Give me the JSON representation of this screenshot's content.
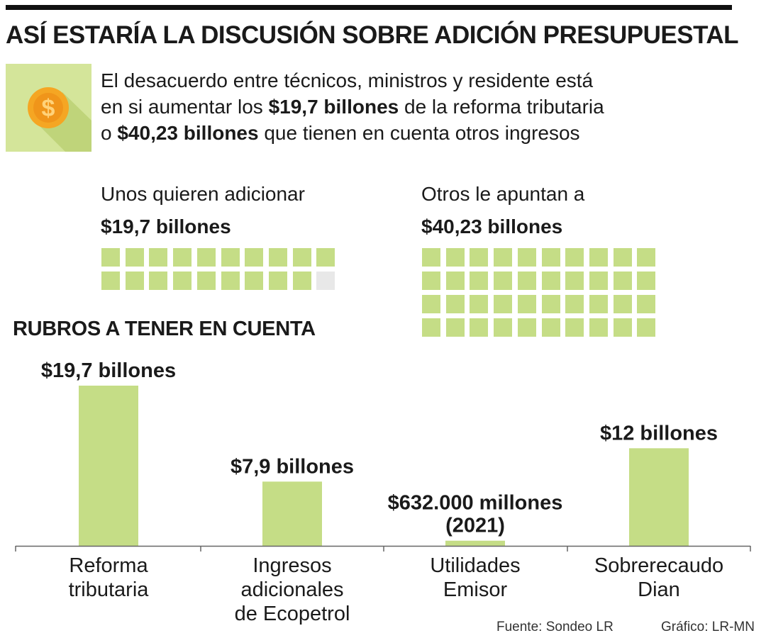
{
  "title": "ASÍ ESTARÍA LA DISCUSIÓN SOBRE ADICIÓN PRESUPUESTAL",
  "intro": {
    "line1": "El desacuerdo entre técnicos, ministros y residente está",
    "line2_pre": "en si aumentar los ",
    "line2_bold": "$19,7 billones",
    "line2_post": " de la reforma tributaria",
    "line3_pre": "o ",
    "line3_bold": "$40,23 billones",
    "line3_post": " que tienen en cuenta otros ingresos"
  },
  "icon": {
    "name": "coin-dollar-icon",
    "glyph": "$"
  },
  "group_left": {
    "label": "Unos quieren adicionar",
    "value": "$19,7 billones",
    "filled": 19.7,
    "total": 20
  },
  "group_right": {
    "label": "Otros le apuntan a",
    "value": "$40,23 billones",
    "filled": 40,
    "total": 40
  },
  "subtitle": "RUBROS A TENER EN CUENTA",
  "colors": {
    "bar": "#c5dd86",
    "empty": "#e8e8e8",
    "icon_bg": "#d4e59a",
    "coin": "#f5a623",
    "axis": "#666666"
  },
  "chart_data": {
    "type": "bar",
    "categories": [
      "Reforma tributaria",
      "Ingresos adicionales de Ecopetrol",
      "Utilidades Emisor",
      "Sobrerecaudo Dian"
    ],
    "category_lines": [
      [
        "Reforma",
        "tributaria"
      ],
      [
        "Ingresos",
        "adicionales",
        "de Ecopetrol"
      ],
      [
        "Utilidades",
        "Emisor"
      ],
      [
        "Sobrerecaudo",
        "Dian"
      ]
    ],
    "values": [
      19.7,
      7.9,
      0.632,
      12
    ],
    "unit": "billones",
    "data_labels": [
      [
        "$19,7 billones"
      ],
      [
        "$7,9 billones"
      ],
      [
        "$632.000 millones",
        "(2021)"
      ],
      [
        "$12 billones"
      ]
    ],
    "ylim": [
      0,
      19.7
    ],
    "grid": false,
    "legend": "none"
  },
  "source": {
    "fuente": "Fuente: Sondeo LR",
    "grafico": "Gráfico: LR-MN"
  }
}
